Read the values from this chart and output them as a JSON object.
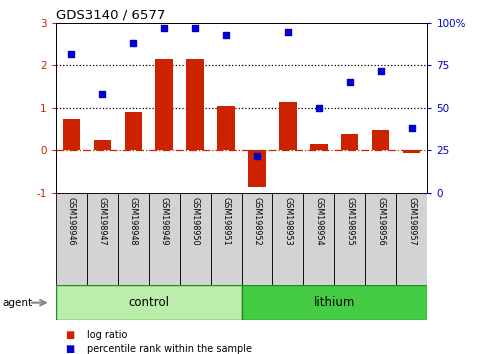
{
  "title": "GDS3140 / 6577",
  "samples": [
    "GSM198946",
    "GSM198947",
    "GSM198948",
    "GSM198949",
    "GSM198950",
    "GSM198951",
    "GSM198952",
    "GSM198953",
    "GSM198954",
    "GSM198955",
    "GSM198956",
    "GSM198957"
  ],
  "log_ratio": [
    0.75,
    0.25,
    0.9,
    2.15,
    2.15,
    1.05,
    -0.85,
    1.15,
    0.15,
    0.38,
    0.48,
    -0.05
  ],
  "percentile_rank": [
    82,
    58,
    88,
    97,
    97,
    93,
    22,
    95,
    50,
    65,
    72,
    38
  ],
  "groups": [
    {
      "label": "control",
      "start": 0,
      "end": 6,
      "color": "#BBEEAA",
      "edgecolor": "#228B22"
    },
    {
      "label": "lithium",
      "start": 6,
      "end": 12,
      "color": "#44CC44",
      "edgecolor": "#228B22"
    }
  ],
  "bar_color": "#CC2200",
  "scatter_color": "#0000CC",
  "ylim_left": [
    -1,
    3
  ],
  "ylim_right": [
    0,
    100
  ],
  "yticks_left": [
    -1,
    0,
    1,
    2,
    3
  ],
  "yticks_right": [
    0,
    25,
    50,
    75,
    100
  ],
  "hline_color": "#CC2200",
  "dotline_color": "black",
  "dotline_values": [
    1,
    2
  ],
  "background_color": "#ffffff",
  "agent_label": "agent",
  "legend_items": [
    {
      "label": "log ratio",
      "color": "#CC2200"
    },
    {
      "label": "percentile rank within the sample",
      "color": "#0000CC"
    }
  ]
}
